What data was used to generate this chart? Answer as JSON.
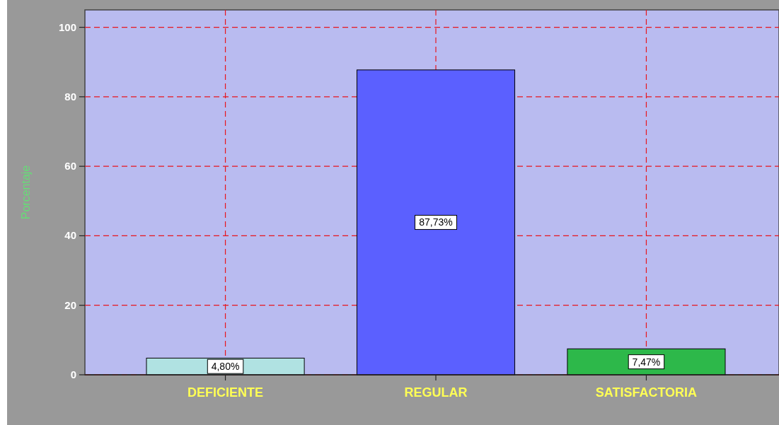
{
  "chart_data": {
    "type": "bar",
    "ylabel": "Porcentaje",
    "categories": [
      "DEFICIENTE",
      "REGULAR",
      "SATISFACTORIA"
    ],
    "values": [
      4.8,
      87.73,
      7.47
    ],
    "colors": [
      "#b0e2e2",
      "#5b60ff",
      "#2db84a"
    ],
    "value_labels": [
      "4,80%",
      "87,73%",
      "7,47%"
    ],
    "ylim": [
      0,
      105
    ],
    "yticks": [
      0,
      20,
      40,
      60,
      80,
      100
    ],
    "grid": true
  }
}
